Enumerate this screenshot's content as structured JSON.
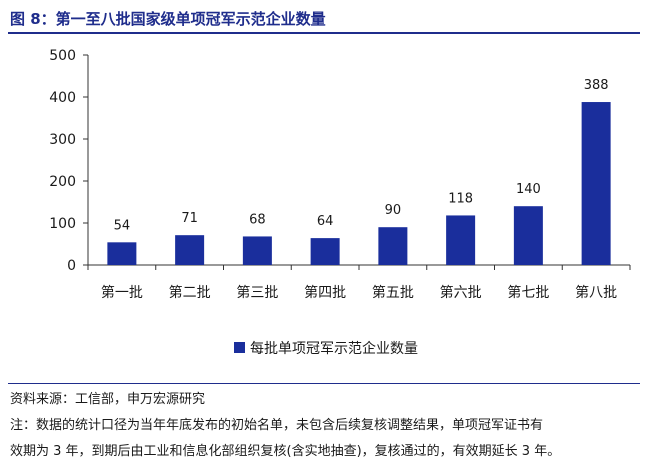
{
  "title": "图 8：第一至八批国家级单项冠军示范企业数量",
  "source": "资料来源：工信部，申万宏源研究",
  "note_line1": "注：数据的统计口径为当年年底发布的初始名单，未包含后续复核调整结果，单项冠军证书有",
  "note_line2": "效期为 3 年，到期后由工业和信息化部组织复核(含实地抽查)，复核通过的，有效期延长 3 年。",
  "colors": {
    "bar": "#1a2e9c",
    "accent": "#1f2d8c"
  },
  "chart_data": {
    "type": "bar",
    "categories": [
      "第一批",
      "第二批",
      "第三批",
      "第四批",
      "第五批",
      "第六批",
      "第七批",
      "第八批"
    ],
    "series": [
      {
        "name": "每批单项冠军示范企业数量",
        "values": [
          54,
          71,
          68,
          64,
          90,
          118,
          140,
          388
        ]
      }
    ],
    "ylim": [
      0,
      500
    ],
    "yticks": [
      0,
      100,
      200,
      300,
      400,
      500
    ],
    "grid": false,
    "legend": "bottom-center",
    "data_labels": true
  }
}
